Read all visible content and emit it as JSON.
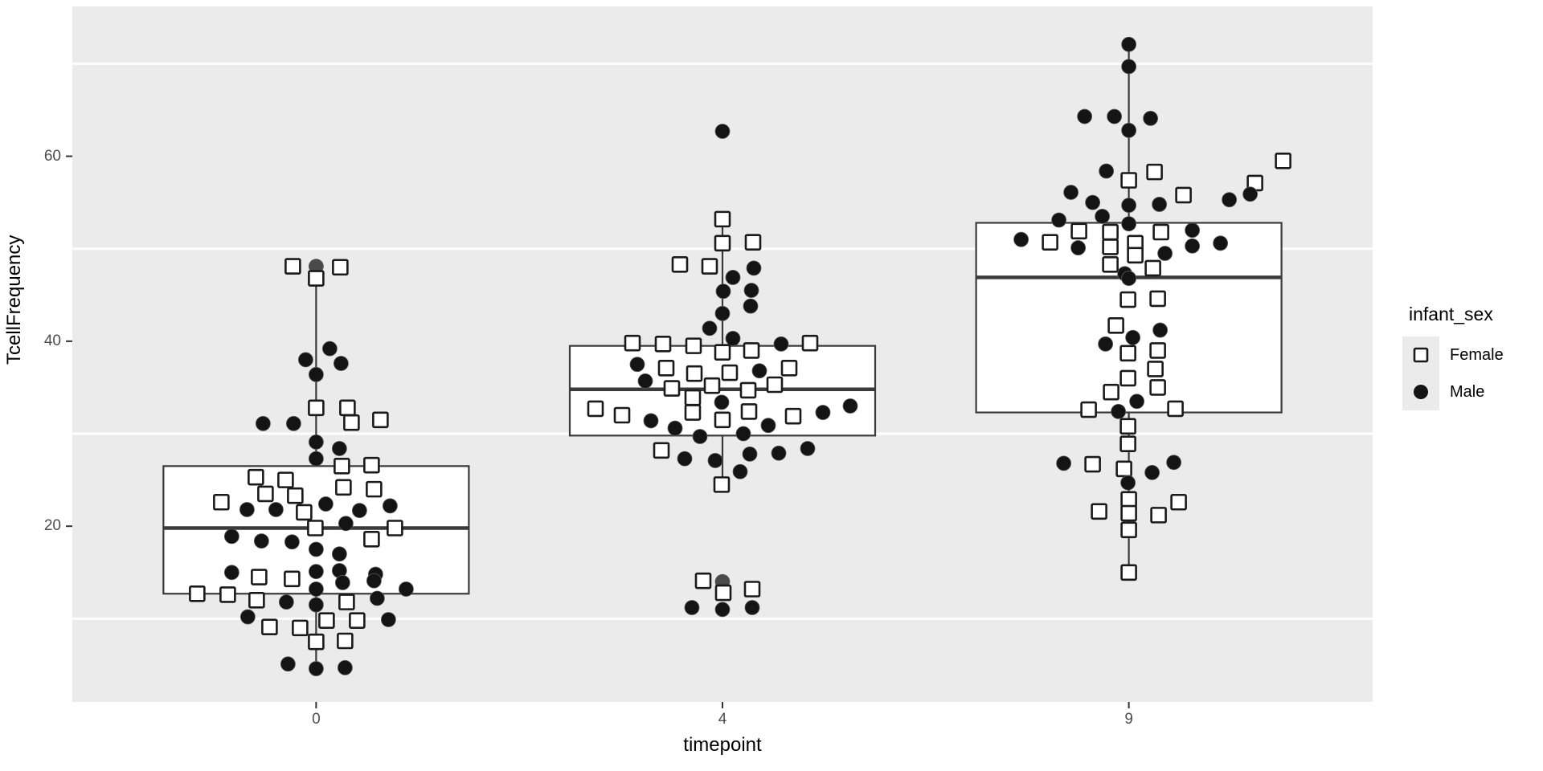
{
  "figure": {
    "background": "#FFFFFF",
    "panel_bg": "#EBEBEB",
    "grid_color": "#FFFFFF",
    "box_fill": "#FFFFFF",
    "box_border_color": "#3A3A3A",
    "point_color": "#141414",
    "dim_point_color": "#4A4A4A",
    "square_fill": "#FFFFFF",
    "square_border": "#1A1A1A",
    "axis_text_color": "#4D4D4D",
    "tick_mark_color": "#333333"
  },
  "chart_data": {
    "type": "boxplot-jitter",
    "title": "",
    "xlabel": "timepoint",
    "ylabel": "TcellFrequency",
    "categories": [
      "0",
      "4",
      "9"
    ],
    "y_ticks": [
      20,
      40,
      60
    ],
    "y_minor_gridlines": [
      10,
      30,
      50,
      70
    ],
    "ylim": [
      1.0,
      76.2
    ],
    "grid": "minor-horizontal-only",
    "legend": {
      "title": "infant_sex",
      "position": "right",
      "entries": [
        {
          "label": "Female",
          "shape": "open-square"
        },
        {
          "label": "Male",
          "shape": "filled-circle"
        }
      ]
    },
    "boxes": [
      {
        "category": "0",
        "whisker_low": 4.6,
        "q1": 12.7,
        "median": 19.8,
        "q3": 26.5,
        "whisker_high": 48.0
      },
      {
        "category": "4",
        "whisker_low": 24.5,
        "q1": 29.8,
        "median": 34.8,
        "q3": 39.5,
        "whisker_high": 53.2
      },
      {
        "category": "9",
        "whisker_low": 15.0,
        "q1": 32.3,
        "median": 46.9,
        "q3": 52.8,
        "whisker_high": 72.1
      }
    ],
    "points_format": [
      "jitter_dx_px",
      "value",
      "sex(F=Female/M=Male)",
      "optional:dim"
    ],
    "points": {
      "0": [
        [
          -29,
          48.1,
          "F"
        ],
        [
          0,
          48.1,
          "M",
          "dim"
        ],
        [
          30,
          48.0,
          "F"
        ],
        [
          0,
          46.8,
          "F"
        ],
        [
          -13,
          38.0,
          "M"
        ],
        [
          17,
          39.2,
          "M"
        ],
        [
          31,
          37.6,
          "M"
        ],
        [
          0,
          36.4,
          "M"
        ],
        [
          0,
          32.8,
          "F"
        ],
        [
          39,
          32.8,
          "F"
        ],
        [
          44,
          31.2,
          "F"
        ],
        [
          80,
          31.5,
          "F"
        ],
        [
          -66,
          31.1,
          "M"
        ],
        [
          -28,
          31.1,
          "M"
        ],
        [
          0,
          29.1,
          "M"
        ],
        [
          29,
          28.4,
          "M"
        ],
        [
          0,
          27.3,
          "M"
        ],
        [
          32,
          26.5,
          "F"
        ],
        [
          69,
          26.6,
          "F"
        ],
        [
          -75,
          25.3,
          "F"
        ],
        [
          -38,
          25.0,
          "F"
        ],
        [
          34,
          24.2,
          "F"
        ],
        [
          72,
          24.0,
          "F"
        ],
        [
          -63,
          23.5,
          "F"
        ],
        [
          -26,
          23.3,
          "F"
        ],
        [
          -118,
          22.6,
          "F"
        ],
        [
          12,
          22.4,
          "M"
        ],
        [
          92,
          22.2,
          "M"
        ],
        [
          -86,
          21.8,
          "M"
        ],
        [
          -50,
          21.8,
          "M"
        ],
        [
          54,
          21.7,
          "M"
        ],
        [
          -15,
          21.5,
          "F"
        ],
        [
          37,
          20.3,
          "M"
        ],
        [
          -1,
          19.8,
          "F"
        ],
        [
          98,
          19.8,
          "F"
        ],
        [
          -105,
          18.9,
          "M"
        ],
        [
          -68,
          18.4,
          "M"
        ],
        [
          -30,
          18.3,
          "M"
        ],
        [
          69,
          18.6,
          "F"
        ],
        [
          0,
          17.5,
          "M"
        ],
        [
          29,
          17.0,
          "M"
        ],
        [
          29,
          15.2,
          "M"
        ],
        [
          0,
          15.1,
          "M"
        ],
        [
          -105,
          15.0,
          "M"
        ],
        [
          74,
          14.8,
          "M"
        ],
        [
          -71,
          14.5,
          "F"
        ],
        [
          -30,
          14.3,
          "F"
        ],
        [
          -148,
          12.7,
          "F"
        ],
        [
          -110,
          12.6,
          "F"
        ],
        [
          0,
          13.2,
          "M"
        ],
        [
          33,
          13.9,
          "M"
        ],
        [
          72,
          14.1,
          "M"
        ],
        [
          112,
          13.2,
          "M"
        ],
        [
          -74,
          12.0,
          "F"
        ],
        [
          -37,
          11.8,
          "M"
        ],
        [
          0,
          11.5,
          "M"
        ],
        [
          38,
          11.8,
          "F"
        ],
        [
          76,
          12.2,
          "M"
        ],
        [
          -85,
          10.2,
          "M"
        ],
        [
          -58,
          9.1,
          "F"
        ],
        [
          -20,
          9.0,
          "F"
        ],
        [
          13,
          9.8,
          "F"
        ],
        [
          51,
          9.8,
          "F"
        ],
        [
          90,
          9.9,
          "M"
        ],
        [
          36,
          7.6,
          "F"
        ],
        [
          0,
          7.5,
          "F"
        ],
        [
          -35,
          5.1,
          "M"
        ],
        [
          0,
          4.6,
          "M"
        ],
        [
          36,
          4.7,
          "M"
        ]
      ],
      "4": [
        [
          0,
          62.7,
          "M"
        ],
        [
          0,
          53.2,
          "F"
        ],
        [
          0,
          50.6,
          "F"
        ],
        [
          38,
          50.7,
          "F"
        ],
        [
          -53,
          48.3,
          "F"
        ],
        [
          -16,
          48.1,
          "F"
        ],
        [
          13,
          46.9,
          "M"
        ],
        [
          39,
          47.9,
          "M"
        ],
        [
          1,
          45.4,
          "M"
        ],
        [
          36,
          45.5,
          "M"
        ],
        [
          35,
          43.8,
          "M"
        ],
        [
          0,
          43.0,
          "M"
        ],
        [
          -16,
          41.4,
          "M"
        ],
        [
          13,
          40.3,
          "M"
        ],
        [
          73,
          39.7,
          "M"
        ],
        [
          109,
          39.8,
          "F"
        ],
        [
          -112,
          39.8,
          "F"
        ],
        [
          -74,
          39.7,
          "F"
        ],
        [
          -36,
          39.5,
          "F"
        ],
        [
          0,
          38.8,
          "F"
        ],
        [
          36,
          39.0,
          "F"
        ],
        [
          -106,
          37.5,
          "M"
        ],
        [
          -70,
          37.1,
          "F"
        ],
        [
          -35,
          36.5,
          "F"
        ],
        [
          9,
          36.6,
          "F"
        ],
        [
          46,
          36.8,
          "M"
        ],
        [
          83,
          37.1,
          "F"
        ],
        [
          -96,
          35.7,
          "M"
        ],
        [
          -63,
          34.9,
          "F"
        ],
        [
          -13,
          35.2,
          "F"
        ],
        [
          32,
          34.7,
          "F"
        ],
        [
          65,
          35.3,
          "F"
        ],
        [
          -37,
          33.9,
          "F"
        ],
        [
          -158,
          32.7,
          "F"
        ],
        [
          -125,
          32.0,
          "F"
        ],
        [
          -37,
          32.3,
          "F"
        ],
        [
          -1,
          33.4,
          "M"
        ],
        [
          33,
          32.4,
          "F"
        ],
        [
          0,
          31.5,
          "F"
        ],
        [
          -89,
          31.4,
          "M"
        ],
        [
          -59,
          30.6,
          "M"
        ],
        [
          -28,
          29.7,
          "M"
        ],
        [
          26,
          30.0,
          "M"
        ],
        [
          57,
          30.9,
          "M"
        ],
        [
          88,
          31.9,
          "F"
        ],
        [
          125,
          32.3,
          "M"
        ],
        [
          159,
          33.0,
          "M"
        ],
        [
          -76,
          28.2,
          "F"
        ],
        [
          -47,
          27.3,
          "M"
        ],
        [
          -9,
          27.1,
          "M"
        ],
        [
          22,
          25.9,
          "M"
        ],
        [
          34,
          27.8,
          "M"
        ],
        [
          70,
          27.9,
          "M"
        ],
        [
          106,
          28.4,
          "M"
        ],
        [
          -1,
          24.5,
          "F"
        ],
        [
          -24,
          14.1,
          "F"
        ],
        [
          0,
          14.0,
          "M",
          "dim"
        ],
        [
          1,
          12.8,
          "F"
        ],
        [
          37,
          13.2,
          "F"
        ],
        [
          -38,
          11.2,
          "M"
        ],
        [
          0,
          11.0,
          "M"
        ],
        [
          37,
          11.2,
          "M"
        ]
      ],
      "9": [
        [
          0,
          72.1,
          "M"
        ],
        [
          0,
          69.7,
          "M"
        ],
        [
          -55,
          64.3,
          "M"
        ],
        [
          -18,
          64.3,
          "M"
        ],
        [
          27,
          64.1,
          "M"
        ],
        [
          0,
          62.8,
          "M"
        ],
        [
          192,
          59.5,
          "F"
        ],
        [
          157,
          57.1,
          "F"
        ],
        [
          -28,
          58.4,
          "M"
        ],
        [
          32,
          58.3,
          "F"
        ],
        [
          0,
          57.4,
          "F"
        ],
        [
          -72,
          56.1,
          "M"
        ],
        [
          68,
          55.8,
          "F"
        ],
        [
          125,
          55.3,
          "M"
        ],
        [
          151,
          55.9,
          "M"
        ],
        [
          -45,
          55.0,
          "M"
        ],
        [
          0,
          54.7,
          "M"
        ],
        [
          38,
          54.8,
          "M"
        ],
        [
          -33,
          53.5,
          "M"
        ],
        [
          -87,
          53.1,
          "M"
        ],
        [
          0,
          52.7,
          "M"
        ],
        [
          -62,
          51.9,
          "F"
        ],
        [
          -23,
          51.8,
          "F"
        ],
        [
          40,
          51.8,
          "F"
        ],
        [
          79,
          52.0,
          "M"
        ],
        [
          -134,
          51.0,
          "M"
        ],
        [
          -98,
          50.7,
          "F"
        ],
        [
          8,
          50.6,
          "F"
        ],
        [
          -63,
          50.1,
          "M"
        ],
        [
          79,
          50.3,
          "M"
        ],
        [
          114,
          50.6,
          "M"
        ],
        [
          -23,
          50.2,
          "F"
        ],
        [
          8,
          49.3,
          "F"
        ],
        [
          45,
          49.5,
          "M"
        ],
        [
          -23,
          48.3,
          "F"
        ],
        [
          30,
          47.9,
          "F"
        ],
        [
          -5,
          47.3,
          "M"
        ],
        [
          0,
          46.8,
          "M"
        ],
        [
          -1,
          44.5,
          "F"
        ],
        [
          36,
          44.6,
          "F"
        ],
        [
          -16,
          41.7,
          "F"
        ],
        [
          -29,
          39.7,
          "M"
        ],
        [
          5,
          40.4,
          "M"
        ],
        [
          39,
          41.2,
          "M"
        ],
        [
          -1,
          38.7,
          "F"
        ],
        [
          36,
          39.0,
          "F"
        ],
        [
          -1,
          36.0,
          "F"
        ],
        [
          33,
          37.0,
          "F"
        ],
        [
          -22,
          34.5,
          "F"
        ],
        [
          36,
          35.0,
          "F"
        ],
        [
          10,
          33.5,
          "M"
        ],
        [
          -50,
          32.6,
          "F"
        ],
        [
          -13,
          32.4,
          "M"
        ],
        [
          58,
          32.7,
          "F"
        ],
        [
          -1,
          30.8,
          "F"
        ],
        [
          -1,
          28.9,
          "F"
        ],
        [
          -81,
          26.8,
          "M"
        ],
        [
          -45,
          26.7,
          "F"
        ],
        [
          -6,
          26.2,
          "F"
        ],
        [
          29,
          25.8,
          "M"
        ],
        [
          56,
          26.9,
          "M"
        ],
        [
          -1,
          24.7,
          "M"
        ],
        [
          0,
          22.9,
          "F"
        ],
        [
          62,
          22.6,
          "F"
        ],
        [
          -37,
          21.6,
          "F"
        ],
        [
          0,
          21.4,
          "F"
        ],
        [
          37,
          21.2,
          "F"
        ],
        [
          0,
          19.6,
          "F"
        ],
        [
          0,
          15.0,
          "F"
        ]
      ]
    }
  }
}
